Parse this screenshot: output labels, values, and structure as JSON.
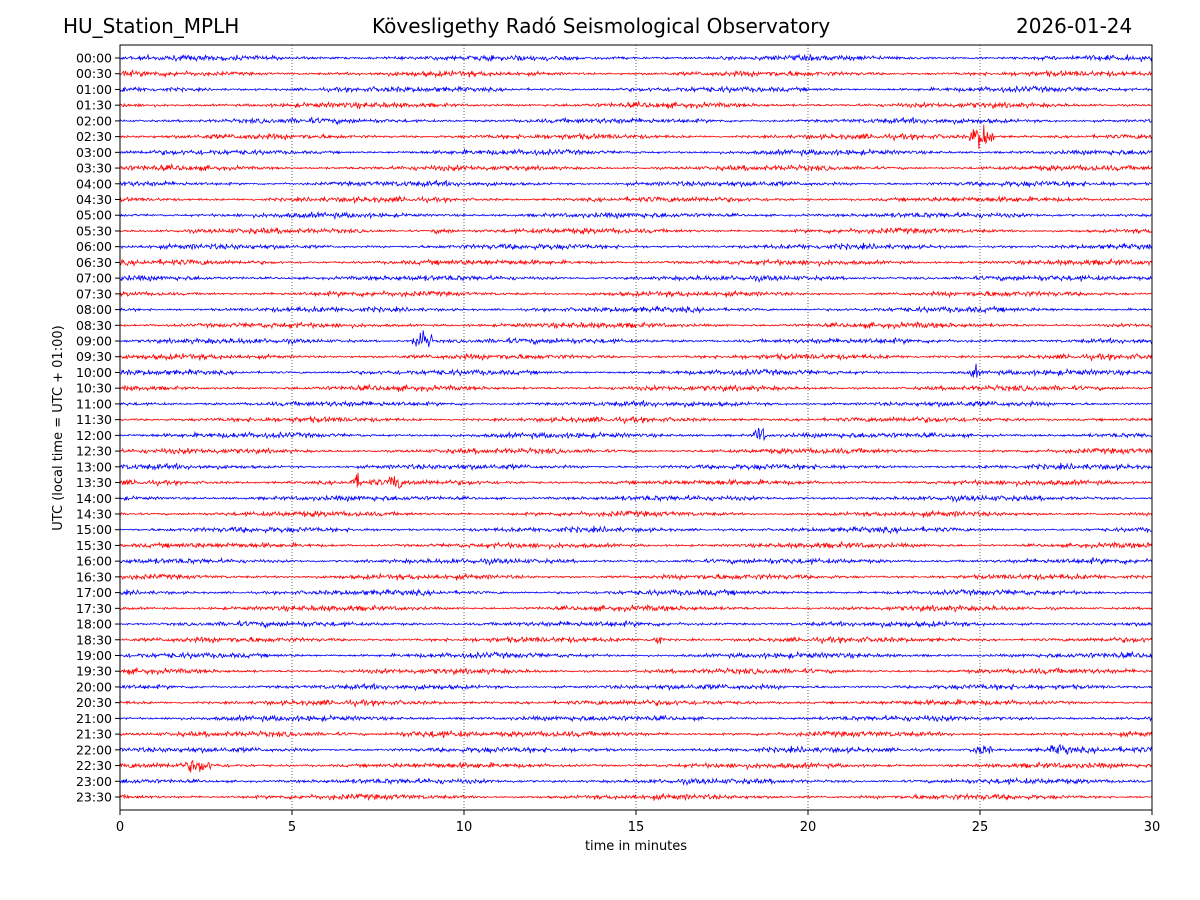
{
  "header": {
    "station": "HU_Station_MPLH",
    "observatory": "Kövesligethy Radó Seismological Observatory",
    "date": "2026-01-24"
  },
  "chart_data": {
    "type": "line",
    "title": "Kövesligethy Radó Seismological Observatory",
    "xlabel": "time in minutes",
    "ylabel": "UTC (local time = UTC + 01:00)",
    "xlim": [
      0,
      30
    ],
    "xticks": [
      0,
      5,
      10,
      15,
      20,
      25,
      30
    ],
    "grid": "vertical dotted at x ticks",
    "colors": [
      "#0000ff",
      "#ff0000"
    ],
    "rows": [
      "00:00",
      "00:30",
      "01:00",
      "01:30",
      "02:00",
      "02:30",
      "03:00",
      "03:30",
      "04:00",
      "04:30",
      "05:00",
      "05:30",
      "06:00",
      "06:30",
      "07:00",
      "07:30",
      "08:00",
      "08:30",
      "09:00",
      "09:30",
      "10:00",
      "10:30",
      "11:00",
      "11:30",
      "12:00",
      "12:30",
      "13:00",
      "13:30",
      "14:00",
      "14:30",
      "15:00",
      "15:30",
      "16:00",
      "16:30",
      "17:00",
      "17:30",
      "18:00",
      "18:30",
      "19:00",
      "19:30",
      "20:00",
      "20:30",
      "21:00",
      "21:30",
      "22:00",
      "22:30",
      "23:00",
      "23:30"
    ],
    "events": [
      {
        "row": "02:30",
        "start": 24.7,
        "end": 25.4,
        "amplitude": 14
      },
      {
        "row": "05:30",
        "start": 9.0,
        "end": 9.8,
        "amplitude": 3
      },
      {
        "row": "09:00",
        "start": 8.5,
        "end": 9.1,
        "amplitude": 12
      },
      {
        "row": "10:00",
        "start": 24.7,
        "end": 25.0,
        "amplitude": 8
      },
      {
        "row": "12:00",
        "start": 18.4,
        "end": 18.8,
        "amplitude": 10
      },
      {
        "row": "13:30",
        "start": 6.7,
        "end": 7.0,
        "amplitude": 10
      },
      {
        "row": "13:30",
        "start": 7.1,
        "end": 7.8,
        "amplitude": 4
      },
      {
        "row": "13:30",
        "start": 7.8,
        "end": 8.2,
        "amplitude": 12
      },
      {
        "row": "18:30",
        "start": 15.4,
        "end": 15.8,
        "amplitude": 7
      },
      {
        "row": "21:30",
        "start": 7.7,
        "end": 10.8,
        "amplitude": 4
      },
      {
        "row": "22:00",
        "start": 24.7,
        "end": 25.4,
        "amplitude": 6
      },
      {
        "row": "22:00",
        "start": 26.9,
        "end": 27.8,
        "amplitude": 6
      },
      {
        "row": "22:30",
        "start": 1.8,
        "end": 2.7,
        "amplitude": 8
      }
    ]
  }
}
